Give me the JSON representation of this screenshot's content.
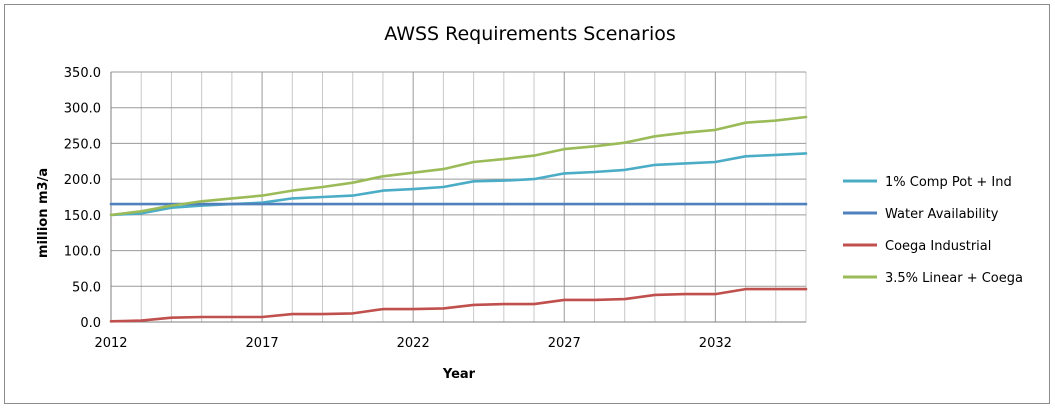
{
  "chart_data": {
    "type": "line",
    "title": "AWSS Requirements Scenarios",
    "xlabel": "Year",
    "ylabel": "million m3/a",
    "xlim": [
      2012,
      2035
    ],
    "ylim": [
      0,
      350
    ],
    "y_ticks": [
      "0.0",
      "50.0",
      "100.0",
      "150.0",
      "200.0",
      "250.0",
      "300.0",
      "350.0"
    ],
    "x_ticks": [
      "2012",
      "2017",
      "2022",
      "2027",
      "2032"
    ],
    "grid": true,
    "legend_position": "right",
    "x": [
      2012,
      2013,
      2014,
      2015,
      2016,
      2017,
      2018,
      2019,
      2020,
      2021,
      2022,
      2023,
      2024,
      2025,
      2026,
      2027,
      2028,
      2029,
      2030,
      2031,
      2032,
      2033,
      2034,
      2035
    ],
    "series": [
      {
        "name": "1% Comp Pot + Ind",
        "color": "#4bacc6",
        "values": [
          150,
          152,
          160,
          163,
          165,
          167,
          173,
          175,
          177,
          184,
          186,
          189,
          197,
          198,
          200,
          208,
          210,
          213,
          220,
          222,
          224,
          232,
          234,
          236
        ]
      },
      {
        "name": "Water Availability",
        "color": "#4f81bd",
        "values": [
          165,
          165,
          165,
          165,
          165,
          165,
          165,
          165,
          165,
          165,
          165,
          165,
          165,
          165,
          165,
          165,
          165,
          165,
          165,
          165,
          165,
          165,
          165,
          165
        ]
      },
      {
        "name": "Coega Industrial",
        "color": "#c0504d",
        "values": [
          1,
          2,
          6,
          7,
          7,
          7,
          11,
          11,
          12,
          18,
          18,
          19,
          24,
          25,
          25,
          31,
          31,
          32,
          38,
          39,
          39,
          46,
          46,
          46
        ]
      },
      {
        "name": "3.5% Linear + Coega",
        "color": "#9bbb59",
        "values": [
          150,
          155,
          163,
          169,
          173,
          177,
          184,
          189,
          195,
          204,
          209,
          214,
          224,
          228,
          233,
          242,
          246,
          251,
          260,
          265,
          269,
          279,
          282,
          287
        ]
      }
    ]
  }
}
